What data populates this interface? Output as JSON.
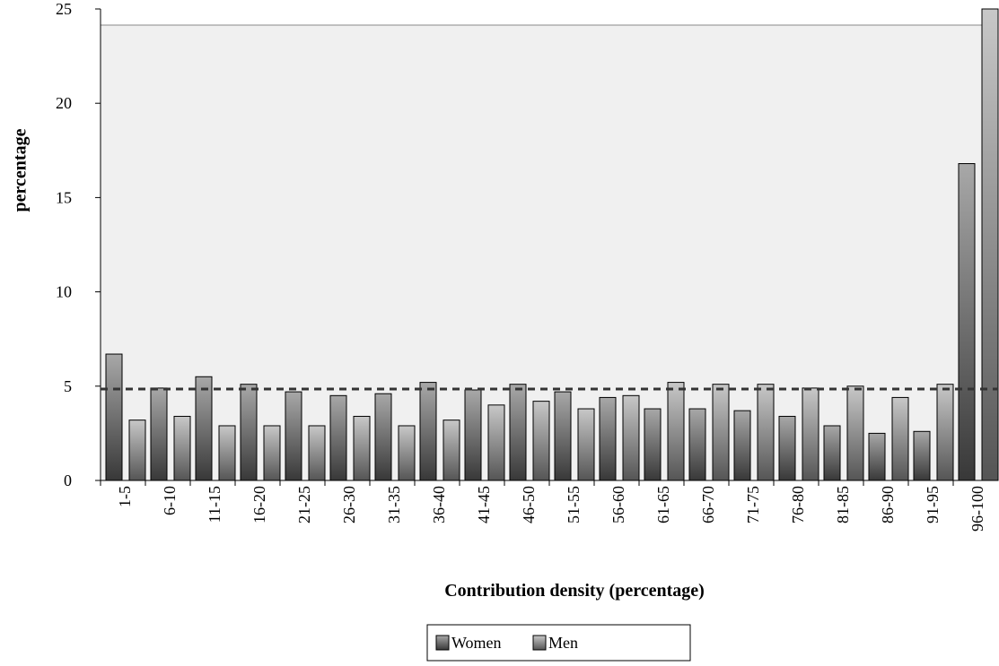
{
  "chart_data": {
    "type": "bar",
    "title": "",
    "xlabel": "Contribution density (percentage)",
    "ylabel": "percentage",
    "ylim": [
      0,
      25
    ],
    "yticks": [
      0,
      5,
      10,
      15,
      20,
      25
    ],
    "grid": false,
    "legend_position": "bottom",
    "categories": [
      "1-5",
      "6-10",
      "11-15",
      "16-20",
      "21-25",
      "26-30",
      "31-35",
      "36-40",
      "41-45",
      "46-50",
      "51-55",
      "56-60",
      "61-65",
      "66-70",
      "71-75",
      "76-80",
      "81-85",
      "86-90",
      "91-95",
      "96-100"
    ],
    "series": [
      {
        "name": "Women",
        "values": [
          6.7,
          4.9,
          5.5,
          5.1,
          4.7,
          4.5,
          4.6,
          5.2,
          4.8,
          5.1,
          4.7,
          4.4,
          3.8,
          3.8,
          3.7,
          3.4,
          2.9,
          2.5,
          2.6,
          16.8
        ]
      },
      {
        "name": "Men",
        "values": [
          3.2,
          3.4,
          2.9,
          2.9,
          2.9,
          3.4,
          2.9,
          3.2,
          4.0,
          4.2,
          3.8,
          4.5,
          5.2,
          5.1,
          5.1,
          4.9,
          5.0,
          4.4,
          5.1,
          25.0
        ]
      }
    ],
    "reference_line": {
      "value": 4.85,
      "style": "dashed"
    },
    "colors": {
      "plot_background": "#f0f0f0",
      "women_dark": "#383838",
      "women_light": "#a8a8a8",
      "men_dark": "#555555",
      "men_light": "#c8c8c8",
      "reference_line": "#333333"
    }
  }
}
